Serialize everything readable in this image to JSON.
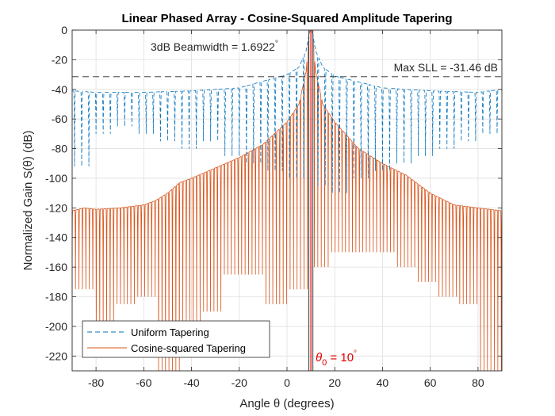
{
  "chart_data": {
    "type": "line",
    "title": "Linear Phased Array - Cosine-Squared Amplitude Tapering",
    "xlabel": "Angle θ (degrees)",
    "ylabel": "Normalized Gain S(θ) (dB)",
    "xlim": [
      -90,
      90
    ],
    "ylim": [
      -230,
      0
    ],
    "xticks": [
      -80,
      -60,
      -40,
      -20,
      0,
      20,
      40,
      60,
      80
    ],
    "yticks": [
      0,
      -20,
      -40,
      -60,
      -80,
      -100,
      -120,
      -140,
      -160,
      -180,
      -200,
      -220
    ],
    "xtick_labels": [
      "-80",
      "-60",
      "-40",
      "-20",
      "0",
      "20",
      "40",
      "60",
      "80"
    ],
    "ytick_labels": [
      "0",
      "-20",
      "-40",
      "-60",
      "-80",
      "-100",
      "-120",
      "-140",
      "-160",
      "-180",
      "-200",
      "-220"
    ],
    "grid": true,
    "legend_position": "bottom-left",
    "steering_angle": 10,
    "beamwidth_3db": 1.6922,
    "max_sll": -31.46,
    "series": [
      {
        "name": "Uniform Tapering",
        "color": "#0072BD",
        "style": "dashed",
        "x": [
          -90,
          -88,
          -86,
          -84,
          -80,
          -75,
          -70,
          -65,
          -60,
          -55,
          -50,
          -45,
          -40,
          -35,
          -30,
          -25,
          -20,
          -15,
          -10,
          -5,
          0,
          3,
          6,
          8,
          9,
          10,
          11,
          12,
          14,
          17,
          20,
          25,
          30,
          35,
          40,
          45,
          50,
          55,
          60,
          65,
          70,
          75,
          80,
          85,
          88,
          90
        ],
        "y": [
          -41,
          -92,
          -48,
          -42,
          -42,
          -42,
          -42,
          -42,
          -42,
          -42,
          -42,
          -42,
          -41,
          -41,
          -40,
          -40,
          -39,
          -38,
          -37,
          -34,
          -30,
          -27,
          -22,
          -14,
          -5,
          0,
          -5,
          -14,
          -22,
          -27,
          -31,
          -35,
          -37,
          -38,
          -39,
          -40,
          -40,
          -41,
          -41,
          -41,
          -42,
          -42,
          -42,
          -42,
          -41,
          -40
        ],
        "envelope_x": [
          -90,
          -80,
          -60,
          -40,
          -20,
          0,
          5,
          8,
          9,
          10,
          11,
          12,
          15,
          20,
          40,
          60,
          80,
          90
        ],
        "envelope_y": [
          -41,
          -42,
          -42,
          -41,
          -39,
          -30,
          -25,
          -14,
          -5,
          0,
          -5,
          -14,
          -25,
          -31,
          -39,
          -41,
          -42,
          -40
        ],
        "null_depth": [
          -92,
          -70,
          -65,
          -70,
          -75,
          -80,
          -75,
          -85,
          -90,
          -95,
          -100,
          -105,
          -110,
          -100,
          -95,
          -90,
          -85,
          -80,
          -75,
          -70
        ]
      },
      {
        "name": "Cosine-squared Tapering",
        "color": "#D95319",
        "style": "solid",
        "x": [
          -90,
          -85,
          -80,
          -75,
          -70,
          -65,
          -60,
          -55,
          -50,
          -45,
          -40,
          -35,
          -30,
          -25,
          -20,
          -15,
          -10,
          -5,
          0,
          3,
          6,
          8,
          9,
          10,
          11,
          12,
          14,
          17,
          20,
          25,
          30,
          35,
          40,
          45,
          50,
          55,
          60,
          65,
          70,
          75,
          80,
          85,
          90
        ],
        "y": [
          -122,
          -120,
          -121,
          -121,
          -120,
          -120,
          -118,
          -115,
          -110,
          -103,
          -100,
          -96,
          -93,
          -90,
          -86,
          -82,
          -77,
          -71,
          -62,
          -55,
          -45,
          -28,
          -8,
          0,
          -8,
          -28,
          -45,
          -55,
          -62,
          -72,
          -80,
          -86,
          -90,
          -94,
          -98,
          -104,
          -110,
          -115,
          -118,
          -119,
          -120,
          -121,
          -122
        ],
        "envelope_x": [
          -90,
          -85,
          -80,
          -70,
          -60,
          -55,
          -50,
          -45,
          -40,
          -30,
          -20,
          -10,
          0,
          5,
          8,
          9,
          10,
          11,
          12,
          15,
          20,
          30,
          40,
          50,
          55,
          60,
          70,
          80,
          90
        ],
        "envelope_y": [
          -122,
          -120,
          -121,
          -120,
          -118,
          -115,
          -110,
          -103,
          -100,
          -93,
          -86,
          -77,
          -62,
          -50,
          -28,
          -8,
          0,
          -8,
          -28,
          -50,
          -62,
          -80,
          -90,
          -98,
          -104,
          -110,
          -118,
          -120,
          -122
        ],
        "null_depth": [
          -175,
          -205,
          -185,
          -180,
          -230,
          -200,
          -190,
          -165,
          -165,
          -185,
          -175,
          -160,
          -150,
          -150,
          -150,
          -160,
          -170,
          -180,
          -185,
          -230
        ]
      }
    ],
    "annotations": {
      "beamwidth_label": "3dB Beamwidth = 1.6922",
      "degree_symbol": "°",
      "sll_label": "Max SLL = -31.46 dB",
      "theta_symbol": "θ",
      "theta_subscript": "0",
      "theta_value": " = 10"
    }
  }
}
